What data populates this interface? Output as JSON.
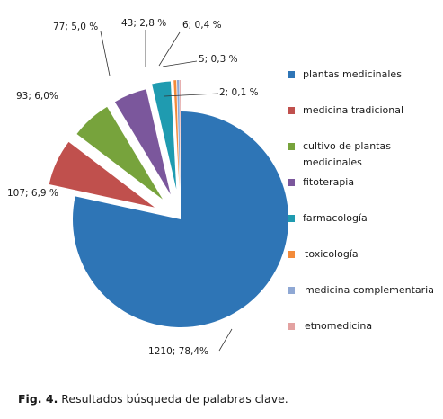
{
  "chart_data": {
    "type": "pie",
    "exploded": true,
    "legend_position": "right",
    "categories": [
      "plantas medicinales",
      "medicina tradicional",
      "cultivo de plantas medicinales",
      "fitoterapia",
      "farmacología",
      "toxicología",
      "medicina complementaria",
      "etnomedicina"
    ],
    "values": [
      1210,
      107,
      93,
      77,
      43,
      6,
      5,
      2
    ],
    "percents": [
      78.4,
      6.9,
      6.0,
      5.0,
      2.8,
      0.4,
      0.3,
      0.1
    ],
    "data_labels": [
      "1210; 78,4%",
      "107; 6,9 %",
      "93; 6,0%",
      "77; 5,0 %",
      "43; 2,8 %",
      "6; 0,4 %",
      "5; 0,3 %",
      "2; 0,1 %"
    ],
    "colors": [
      "#2e75b6",
      "#c0504d",
      "#77a33c",
      "#7b579c",
      "#1f9bb0",
      "#f38b3a",
      "#8fa8d4",
      "#e3a2a1"
    ]
  },
  "caption": {
    "label": "Fig. 4.",
    "text": " Resultados búsqueda de palabras clave."
  }
}
